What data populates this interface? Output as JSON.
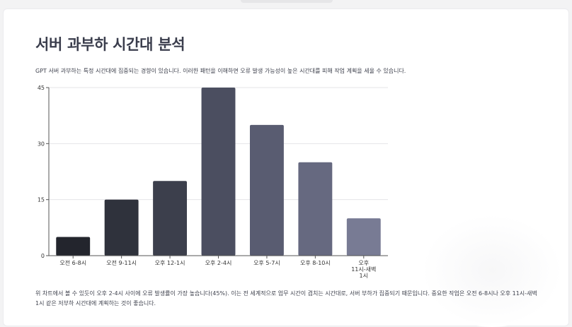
{
  "page": {
    "title": "서버 과부하 시간대 분석",
    "description": "GPT 서버 과부하는 특정 시간대에 집중되는 경향이 있습니다. 이러한 패턴을 이해하면 오류 발생 가능성이 높은 시간대를 피해 작업 계획을 세울 수 있습니다.",
    "summary": "위 차트에서 볼 수 있듯이 오후 2-4시 사이에 오류 발생률이 가장 높습니다(45%). 이는 전 세계적으로 업무 시간이 겹치는 시간대로, 서버 부하가 집중되기 때문입니다. 중요한 작업은 오전 6-8시나 오후 11시-새벽 1시 같은 저부하 시간대에 계획하는 것이 좋습니다."
  },
  "chart_data": {
    "type": "bar",
    "categories": [
      "오전 6-8시",
      "오전 9-11시",
      "오후 12-1시",
      "오후 2-4시",
      "오후 5-7시",
      "오후 8-10시",
      "오후 11시-새벽 1시"
    ],
    "category_label_lines": [
      [
        "오전 6-8시"
      ],
      [
        "오전 9-11시"
      ],
      [
        "오후 12-1시"
      ],
      [
        "오후 2-4시"
      ],
      [
        "오후 5-7시"
      ],
      [
        "오후 8-10시"
      ],
      [
        "오후",
        "11시-새벽",
        "1시"
      ]
    ],
    "values": [
      5,
      15,
      20,
      45,
      35,
      25,
      10
    ],
    "colors": [
      "#23252d",
      "#2f323c",
      "#3c3f4c",
      "#4b4e60",
      "#595c71",
      "#666980",
      "#787b94"
    ],
    "ylim": [
      0,
      45
    ],
    "yticks": [
      0,
      15,
      30,
      45
    ],
    "grid": true,
    "title": "",
    "xlabel": "",
    "ylabel": ""
  }
}
